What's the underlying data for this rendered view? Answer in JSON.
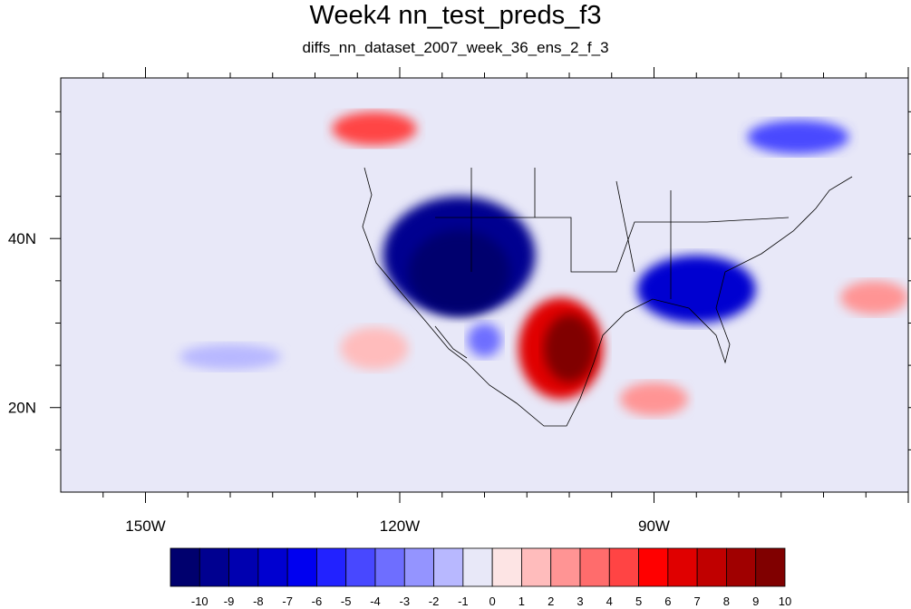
{
  "title": "Week4 nn_test_preds_f3",
  "subtitle": "diffs_nn_dataset_2007_week_36_ens_2_f_3",
  "map": {
    "lon_range": [
      -160,
      -60
    ],
    "lat_range": [
      10,
      59
    ],
    "x_ticks": [
      {
        "lon": -150,
        "label": "150W"
      },
      {
        "lon": -120,
        "label": "120W"
      },
      {
        "lon": -90,
        "label": "90W"
      }
    ],
    "y_ticks": [
      {
        "lat": 40,
        "label": "40N"
      },
      {
        "lat": 20,
        "label": "20N"
      }
    ],
    "background_color": "#e8e8f8"
  },
  "colorbar": {
    "labels": [
      "-10",
      "-9",
      "-8",
      "-7",
      "-6",
      "-5",
      "-4",
      "-3",
      "-2",
      "-1",
      "0",
      "1",
      "2",
      "3",
      "4",
      "5",
      "6",
      "7",
      "8",
      "9",
      "10"
    ],
    "colors": [
      "#00006e",
      "#000090",
      "#0000b0",
      "#0000d0",
      "#0000f0",
      "#2222ff",
      "#4848ff",
      "#6e6eff",
      "#9494ff",
      "#b8b8ff",
      "#e8e8f8",
      "#fde4e4",
      "#ffbcbc",
      "#ff9494",
      "#ff6c6c",
      "#ff4444",
      "#ff0000",
      "#e00000",
      "#c00000",
      "#a00000",
      "#800000"
    ]
  },
  "anomalies": [
    {
      "name": "west-us-negative",
      "color": "#000090",
      "cx": -113,
      "cy": 38,
      "rx": 9,
      "ry": 7
    },
    {
      "name": "west-us-negative-core",
      "color": "#00006e",
      "cx": -113,
      "cy": 36,
      "rx": 6,
      "ry": 5
    },
    {
      "name": "southeast-negative",
      "color": "#0000d0",
      "cx": -85,
      "cy": 34,
      "rx": 7,
      "ry": 4
    },
    {
      "name": "mexico-positive",
      "color": "#e00000",
      "cx": -101,
      "cy": 27,
      "rx": 5,
      "ry": 6
    },
    {
      "name": "mexico-positive-core",
      "color": "#800000",
      "cx": -100,
      "cy": 27,
      "rx": 3,
      "ry": 4
    },
    {
      "name": "pacific-nw-positive",
      "color": "#ff4444",
      "cx": -123,
      "cy": 53,
      "rx": 5,
      "ry": 2
    },
    {
      "name": "canada-east-negative",
      "color": "#4848ff",
      "cx": -73,
      "cy": 52,
      "rx": 6,
      "ry": 2
    },
    {
      "name": "gulf-positive",
      "color": "#ff9494",
      "cx": -90,
      "cy": 21,
      "rx": 4,
      "ry": 2
    },
    {
      "name": "atlantic-positive",
      "color": "#ff9494",
      "cx": -64,
      "cy": 33,
      "rx": 4,
      "ry": 2
    },
    {
      "name": "pacific-positive",
      "color": "#ffbcbc",
      "cx": -123,
      "cy": 27,
      "rx": 4,
      "ry": 2.5
    },
    {
      "name": "pacific-negative",
      "color": "#b8b8ff",
      "cx": -140,
      "cy": 26,
      "rx": 6,
      "ry": 1.5
    },
    {
      "name": "baja-negative",
      "color": "#6e6eff",
      "cx": -110,
      "cy": 28,
      "rx": 2,
      "ry": 2
    }
  ]
}
